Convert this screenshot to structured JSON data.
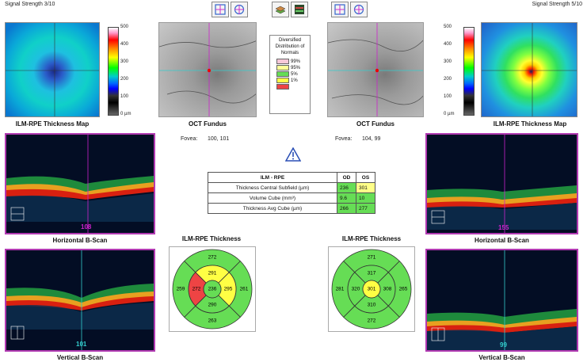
{
  "signal_left": "Signal Strength 3/10",
  "signal_right": "Signal Strength 5/10",
  "colorbar_labels": [
    "500",
    "400",
    "300",
    "200",
    "100",
    "0 µm"
  ],
  "captions": {
    "thickness_map": "ILM-RPE Thickness Map",
    "oct_fundus": "OCT Fundus",
    "horizontal_bscan": "Horizontal B-Scan",
    "vertical_bscan": "Vertical B-Scan",
    "ilm_rpe_thickness": "ILM-RPE Thickness"
  },
  "fovea_left": {
    "label": "Fovea:",
    "value": "100, 101"
  },
  "fovea_right": {
    "label": "Fovea:",
    "value": "104, 99"
  },
  "legend": {
    "title": "Diversified Distribution of Normals",
    "items": [
      {
        "label": "99%",
        "color": "#f7c8d8"
      },
      {
        "label": "95%",
        "color": "#ffff99"
      },
      {
        "label": "5%",
        "color": "#66dd55"
      },
      {
        "label": "1%",
        "color": "#ffff44"
      },
      {
        "label": "",
        "color": "#ee4444"
      }
    ]
  },
  "table": {
    "headers": [
      "ILM - RPE",
      "OD",
      "OS"
    ],
    "rows": [
      {
        "label": "Thickness Central Subfield (µm)",
        "od": "236",
        "os": "301",
        "od_color": "#66dd55",
        "os_color": "#ffff88"
      },
      {
        "label": "Volume Cube (mm³)",
        "od": "9.6",
        "os": "10",
        "od_color": "#66dd55",
        "os_color": "#66dd55"
      },
      {
        "label": "Thickness Avg Cube (µm)",
        "od": "266",
        "os": "277",
        "od_color": "#66dd55",
        "os_color": "#66dd55"
      }
    ]
  },
  "bscan_numbers": {
    "left_horizontal": "108",
    "left_vertical": "101",
    "right_horizontal": "155",
    "right_vertical": "99"
  },
  "grid_od": {
    "outer": {
      "superior": "272",
      "temporal": "259",
      "nasal": "261",
      "inferior": "263"
    },
    "inner": {
      "superior": "291",
      "temporal": "272",
      "nasal": "295",
      "inferior": "290"
    },
    "center": "236",
    "colors": {
      "outer": "#66dd55",
      "inner_superior": "#ffff44",
      "inner_temporal": "#ee4444",
      "inner_nasal": "#ffff44",
      "inner_inferior": "#66dd55",
      "center": "#66dd55"
    }
  },
  "grid_os": {
    "outer": {
      "superior": "271",
      "temporal": "281",
      "nasal": "265",
      "inferior": "272"
    },
    "inner": {
      "superior": "317",
      "temporal": "320",
      "nasal": "308",
      "inferior": "310"
    },
    "center": "301",
    "colors": {
      "outer": "#66dd55",
      "inner_superior": "#66dd55",
      "inner_temporal": "#66dd55",
      "inner_nasal": "#66dd55",
      "inner_inferior": "#66dd55",
      "center": "#ffff44"
    }
  }
}
